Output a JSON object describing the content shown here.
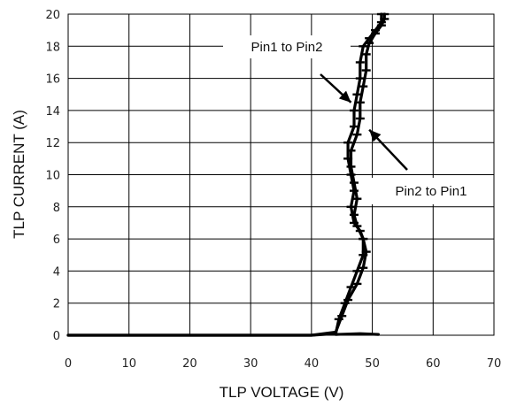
{
  "chart_data": {
    "type": "line",
    "xlabel": "TLP VOLTAGE (V)",
    "ylabel": "TLP CURRENT (A)",
    "xlim": [
      0,
      70
    ],
    "ylim": [
      0,
      20
    ],
    "x_ticks": [
      "0",
      "10",
      "20",
      "30",
      "40",
      "50",
      "60",
      "70"
    ],
    "y_ticks": [
      "0",
      "2",
      "4",
      "6",
      "8",
      "10",
      "12",
      "14",
      "16",
      "18",
      "20"
    ],
    "grid": true,
    "legend": "none",
    "line_color": "#000000",
    "annotations": [
      {
        "text": "Pin1 to Pin2",
        "points_to": {
          "x": 46.5,
          "y": 14.5
        }
      },
      {
        "text": "Pin2 to Pin1",
        "points_to": {
          "x": 49.5,
          "y": 12.8
        }
      }
    ],
    "series": [
      {
        "x": [
          0,
          10,
          20,
          30,
          40,
          44,
          44.5,
          45.5,
          46.5,
          47.5,
          48.5,
          48.5,
          48,
          47,
          46.5,
          47,
          46.5,
          46,
          46,
          47,
          47,
          47.5,
          48,
          48,
          48.5,
          49.5,
          50.5,
          51.5,
          51.5
        ],
        "y": [
          0,
          0,
          0,
          0,
          0,
          0.1,
          1,
          2,
          3,
          4,
          5,
          6,
          6.5,
          7,
          8,
          9,
          10,
          11,
          12,
          13,
          14,
          15,
          16,
          17,
          18,
          18.5,
          19,
          19.5,
          20
        ]
      },
      {
        "x": [
          0,
          10,
          20,
          30,
          40,
          44,
          45,
          46,
          47.5,
          48.5,
          49,
          48.5,
          47.5,
          47,
          47.5,
          47,
          46.5,
          46.5,
          47.5,
          48,
          48,
          48.5,
          49,
          49,
          49.5,
          50.5,
          51.5,
          52,
          52
        ],
        "y": [
          0,
          0,
          0,
          0,
          0,
          0.2,
          1.2,
          2.2,
          3.2,
          4.2,
          5.2,
          6,
          6.8,
          7.5,
          8.5,
          9.5,
          10.5,
          11.5,
          12.5,
          13.5,
          14.5,
          15.5,
          16.5,
          17.5,
          18.2,
          18.8,
          19.3,
          19.7,
          20
        ]
      },
      {
        "x": [
          44,
          48,
          51
        ],
        "y": [
          0.05,
          0.1,
          0.05
        ]
      }
    ]
  }
}
